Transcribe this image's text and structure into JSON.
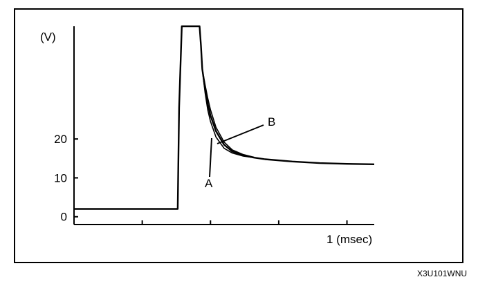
{
  "figure_code": "X3U101WNU",
  "chart_data": {
    "type": "line",
    "title": "",
    "ylabel": "(V)",
    "xlabel": "1 (msec)",
    "ylim": [
      -2,
      49
    ],
    "xlim": [
      0,
      1.1
    ],
    "y_ticks": [
      {
        "value": 0,
        "label": "0"
      },
      {
        "value": 10,
        "label": "10"
      },
      {
        "value": 20,
        "label": "20"
      }
    ],
    "x_ticks": [
      {
        "value": 0.25,
        "label": ""
      },
      {
        "value": 0.5,
        "label": ""
      },
      {
        "value": 0.75,
        "label": ""
      },
      {
        "value": 1.0,
        "label": "1 (msec)"
      }
    ],
    "grid": false,
    "series": [
      {
        "name": "",
        "x": [
          0,
          0.38,
          0.385,
          0.395,
          0.46,
          0.465,
          0.47,
          0.48,
          0.49,
          0.5,
          0.52,
          0.55,
          0.58,
          0.62,
          0.66,
          0.7,
          0.8,
          0.9,
          1.0,
          1.1
        ],
        "y": [
          2,
          2,
          28,
          49,
          49,
          44,
          38,
          33,
          29,
          26,
          22,
          18.5,
          16.8,
          15.8,
          15.2,
          14.8,
          14.2,
          13.8,
          13.6,
          13.5
        ]
      },
      {
        "name": "",
        "x": [
          0.47,
          0.48,
          0.49,
          0.5,
          0.52,
          0.55,
          0.58,
          0.62,
          0.66
        ],
        "y": [
          38,
          32,
          27.5,
          24.5,
          20.5,
          17.6,
          16.4,
          15.6,
          15.2
        ]
      },
      {
        "name": "",
        "x": [
          0.47,
          0.48,
          0.49,
          0.5,
          0.52,
          0.55,
          0.58,
          0.62,
          0.66
        ],
        "y": [
          38,
          34,
          30.5,
          27.5,
          23,
          19.2,
          17.2,
          16,
          15.3
        ]
      }
    ],
    "annotations": [
      {
        "text": "A",
        "x": 0.5,
        "y": 21
      },
      {
        "text": "B",
        "x": 0.53,
        "y": 20
      }
    ]
  }
}
